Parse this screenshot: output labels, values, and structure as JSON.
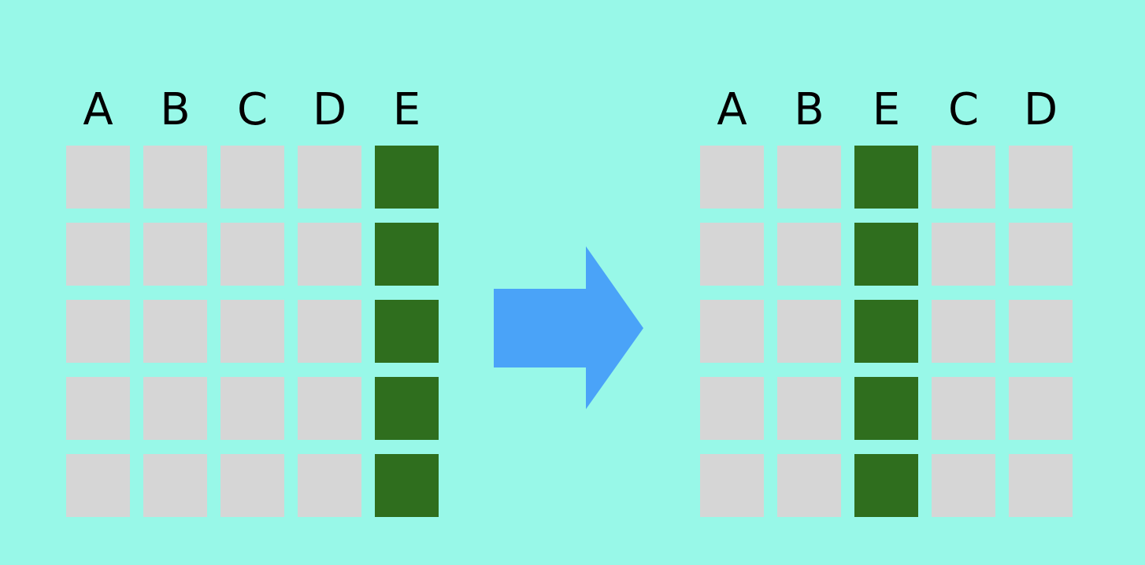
{
  "colors": {
    "background": "#98F8E8",
    "cell": "#D6D6D6",
    "highlight": "#2F6E1E",
    "arrow": "#4AA3F8"
  },
  "rows": 5,
  "before": {
    "columns": [
      {
        "label": "A",
        "highlight": false
      },
      {
        "label": "B",
        "highlight": false
      },
      {
        "label": "C",
        "highlight": false
      },
      {
        "label": "D",
        "highlight": false
      },
      {
        "label": "E",
        "highlight": true
      }
    ]
  },
  "after": {
    "columns": [
      {
        "label": "A",
        "highlight": false
      },
      {
        "label": "B",
        "highlight": false
      },
      {
        "label": "E",
        "highlight": true
      },
      {
        "label": "C",
        "highlight": false
      },
      {
        "label": "D",
        "highlight": false
      }
    ]
  },
  "arrow_icon": "right-arrow-icon"
}
